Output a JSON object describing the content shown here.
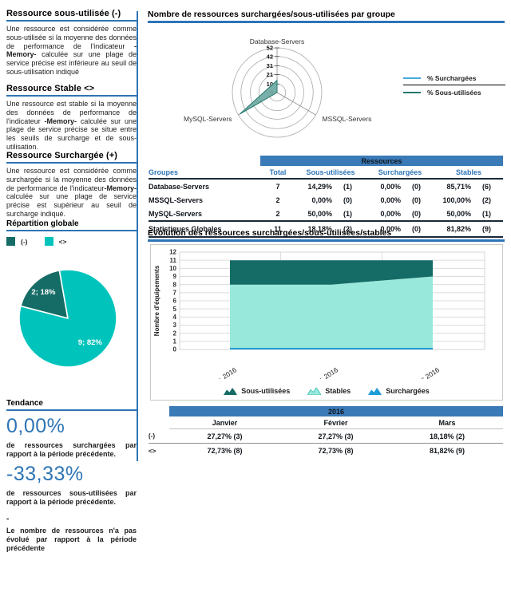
{
  "colors": {
    "accent_blue": "#2E74B5",
    "band_blue": "#3A7AB6",
    "header_text_blue": "#2E75B6",
    "dark_teal": "#156C66",
    "light_teal": "#00C4BC",
    "pale_teal": "#99E8DC",
    "series_blue": "#1E9CD7"
  },
  "sidebar": {
    "sections": [
      {
        "title": "Ressource sous-utilisée (-)",
        "body_pre": "Une ressource est considérée comme sous-utilisée si la moyenne des données de performance de l'indicateur ",
        "body_bold": "-Memory-",
        "body_post": " calculée sur une plage de service précise est inférieure au seuil de sous-utilisation indiqué"
      },
      {
        "title": "Ressource Stable <>",
        "body_pre": "Une ressource est stable si la moyenne des données de performance de l'indicateur ",
        "body_bold": "-Memory-",
        "body_post": " calculée sur une plage de service précise se situe entre les seuils de surcharge et de sous-utilisation."
      },
      {
        "title": "Ressource Surchargée (+)",
        "body_pre": "Une ressource est considérée comme surchargée si la moyenne des données de performance de l'indicateur",
        "body_bold": "-Memory-",
        "body_post": " calculée sur une plage de service précise est supérieur au seuil de surcharge indiqué."
      }
    ],
    "repartition": {
      "title": "Répartition globale",
      "legend": [
        {
          "label": "(-)"
        },
        {
          "label": "<>"
        }
      ]
    },
    "tendance": {
      "title": "Tendance",
      "items": [
        {
          "value": "0,00%",
          "desc": "de ressources surchargées par rapport à la période précédente."
        },
        {
          "value": "-33,33%",
          "desc": "de ressources sous-utilisées par rapport à la période précédente."
        }
      ],
      "dash": "-",
      "note": "Le nombre de ressources n'a pas évolué par rapport à la période précédente"
    }
  },
  "main": {
    "groups_section_title": "Nombre de ressources surchargées/sous-utilisées par groupe",
    "radar_legend": [
      {
        "label": "% Surchargées"
      },
      {
        "label": "% Sous-utilisées"
      }
    ],
    "resources_table": {
      "band_label": "Ressources",
      "col_groupes": "Groupes",
      "col_total": "Total",
      "col_sous": "Sous-utilisées",
      "col_sur": "Surchargées",
      "col_stables": "Stables",
      "rows": [
        {
          "group": "Database-Servers",
          "total": "7",
          "sous_pct": "14,29%",
          "sous_n": "(1)",
          "sur_pct": "0,00%",
          "sur_n": "(0)",
          "stable_pct": "85,71%",
          "stable_n": "(6)",
          "is_total": false
        },
        {
          "group": "MSSQL-Servers",
          "total": "2",
          "sous_pct": "0,00%",
          "sous_n": "(0)",
          "sur_pct": "0,00%",
          "sur_n": "(0)",
          "stable_pct": "100,00%",
          "stable_n": "(2)",
          "is_total": false
        },
        {
          "group": "MySQL-Servers",
          "total": "2",
          "sous_pct": "50,00%",
          "sous_n": "(1)",
          "sur_pct": "0,00%",
          "sur_n": "(0)",
          "stable_pct": "50,00%",
          "stable_n": "(1)",
          "is_total": false
        },
        {
          "group": "Statistiques Globales",
          "total": "11",
          "sous_pct": "18,18%",
          "sous_n": "(2)",
          "sur_pct": "0,00%",
          "sur_n": "(0)",
          "stable_pct": "81,82%",
          "stable_n": "(9)",
          "is_total": true
        }
      ]
    },
    "evolution_title": "Evolution des ressources surchargées/sous-utilisées/stables",
    "months_table": {
      "band_label": "2016",
      "columns": [
        "Janvier",
        "Février",
        "Mars"
      ],
      "rows": [
        {
          "label": "(-)",
          "values": [
            "27,27% (3)",
            "27,27% (3)",
            "18,18% (2)"
          ]
        },
        {
          "label": "<>",
          "values": [
            "72,73% (8)",
            "72,73% (8)",
            "81,82% (9)"
          ]
        }
      ]
    }
  },
  "chart_data": [
    {
      "type": "radar",
      "title": "Nombre de ressources surchargées/sous-utilisées par groupe",
      "axes": [
        "Database-Servers",
        "MSSQL-Servers",
        "MySQL-Servers"
      ],
      "ticks": [
        0,
        10,
        21,
        31,
        42,
        52
      ],
      "max": 52,
      "series": [
        {
          "name": "% Surchargées",
          "values": [
            0,
            0,
            0
          ],
          "line_color": "#45A9DC",
          "fill_color": "none"
        },
        {
          "name": "% Sous-utilisées",
          "values": [
            14.29,
            0,
            50
          ],
          "line_color": "#25776F",
          "fill_color": "#6FA9A3"
        }
      ],
      "legend_position": "right"
    },
    {
      "type": "pie",
      "title": "Répartition globale",
      "labels": [
        "(-)",
        "<>"
      ],
      "values": [
        2,
        9
      ],
      "display_labels": [
        "2; 18%",
        "9; 82%"
      ],
      "colors": [
        "#156C66",
        "#00C4BC"
      ],
      "start_angle": 100
    },
    {
      "type": "area",
      "title": "Evolution des ressources surchargées/sous-utilisées/stables",
      "x": [
        "janv. 2016",
        "févr. 2016",
        "mars 2016"
      ],
      "ylabel": "Nombre d'équipements",
      "ylim": [
        0,
        12
      ],
      "stacked": true,
      "grid": true,
      "series": [
        {
          "name": "Surchargées",
          "color": "#1E9CD7",
          "values": [
            0,
            0,
            0
          ]
        },
        {
          "name": "Stables",
          "color": "#99E8DC",
          "values": [
            8,
            8,
            9
          ]
        },
        {
          "name": "Sous-utilisées",
          "color": "#156C66",
          "values": [
            3,
            3,
            2
          ]
        }
      ],
      "legend": [
        "Sous-utilisées",
        "Stables",
        "Surchargées"
      ],
      "legend_position": "bottom"
    }
  ]
}
